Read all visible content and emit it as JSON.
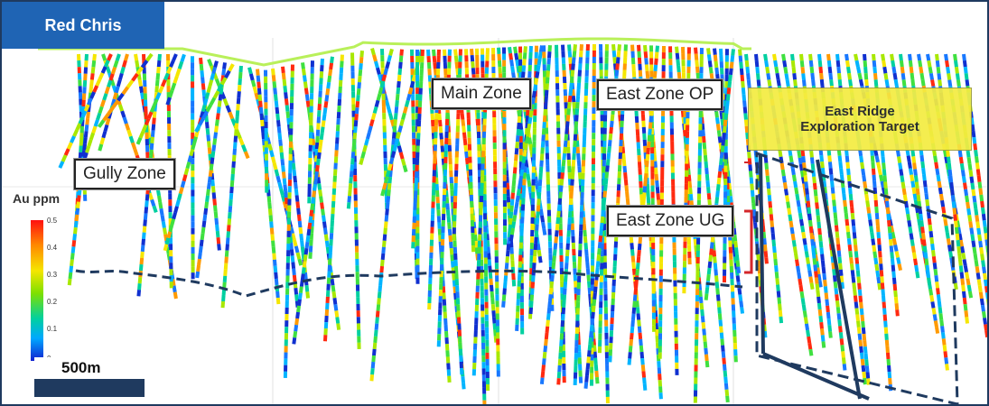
{
  "title": "Red Chris",
  "zones": {
    "gully": "Gully Zone",
    "main": "Main Zone",
    "east_op": "East Zone OP",
    "east_ug": "East Zone UG"
  },
  "target": {
    "line1": "East Ridge",
    "line2": "Exploration Target"
  },
  "legend": {
    "title": "Au ppm",
    "ticks": [
      "0.5",
      "0.4",
      "0.3",
      "0.2",
      "0.1",
      "0"
    ]
  },
  "scale": {
    "label": "500m"
  },
  "colors": {
    "title_bg": "#1f64b4",
    "target_bg": "#f4ec42",
    "topo_line": "#b9f05a",
    "dashed_line": "#1f3a5f"
  }
}
